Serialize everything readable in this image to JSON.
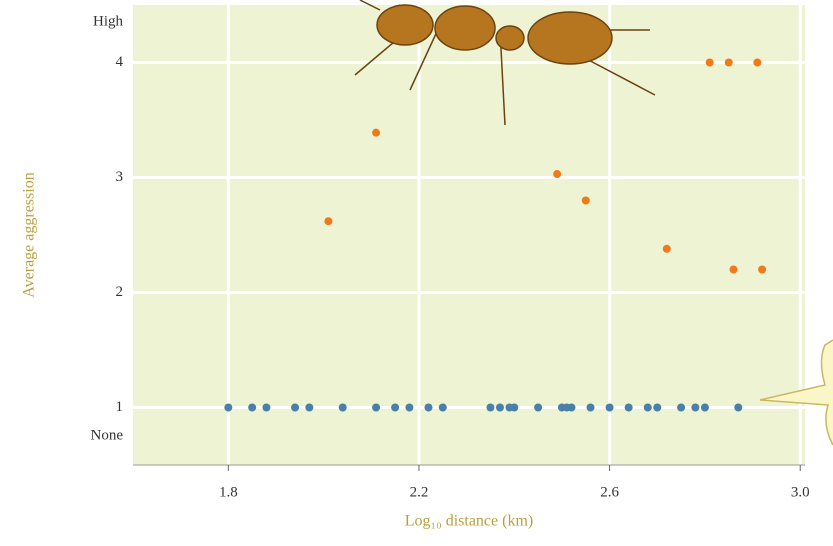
{
  "chart_data": {
    "type": "scatter",
    "xlabel": "Log₁₀ distance (km)",
    "ylabel": "Average aggression",
    "xlim": [
      1.6,
      3.01
    ],
    "ylim": [
      0.5,
      4.5
    ],
    "xticks": [
      1.8,
      2.2,
      2.6,
      {
        "value": 3,
        "label": "3.0"
      }
    ],
    "yticks": [
      {
        "value": 0.75,
        "label": "None"
      },
      1,
      2,
      3,
      4,
      {
        "value": 4.35,
        "label": "High"
      }
    ],
    "grid": true,
    "series": [
      {
        "color": "#f07a1a",
        "x": [
          2.01,
          2.11,
          2.49,
          2.55,
          2.72,
          2.81,
          2.85,
          2.91,
          2.86,
          2.92
        ],
        "values": [
          2.62,
          3.39,
          3.03,
          2.8,
          2.38,
          4.0,
          4.0,
          4.0,
          2.2,
          2.2
        ]
      },
      {
        "color": "#4a7fa8",
        "x": [
          1.8,
          1.85,
          1.88,
          1.94,
          1.97,
          2.04,
          2.11,
          2.15,
          2.18,
          2.22,
          2.25,
          2.35,
          2.37,
          2.39,
          2.4,
          2.45,
          2.5,
          2.51,
          2.52,
          2.56,
          2.6,
          2.64,
          2.68,
          2.7,
          2.75,
          2.78,
          2.8,
          2.87
        ],
        "values": [
          1,
          1,
          1,
          1,
          1,
          1,
          1,
          1,
          1,
          1,
          1,
          1,
          1,
          1,
          1,
          1,
          1,
          1,
          1,
          1,
          1,
          1,
          1,
          1,
          1,
          1,
          1,
          1
        ]
      }
    ]
  }
}
